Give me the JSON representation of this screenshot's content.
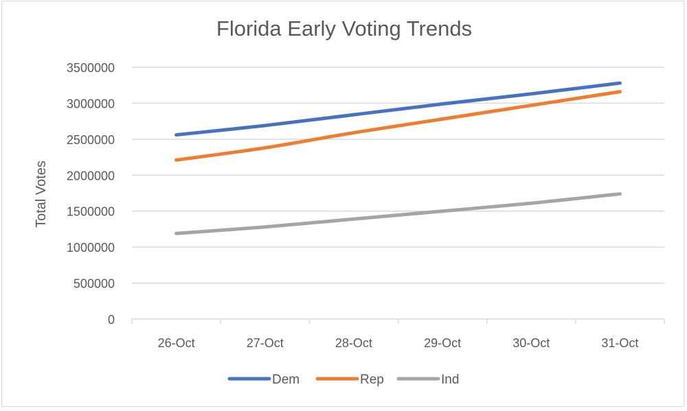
{
  "chart_data": {
    "type": "line",
    "title": "Florida Early Voting Trends",
    "xlabel": "",
    "ylabel": "Total Votes",
    "categories": [
      "26-Oct",
      "27-Oct",
      "28-Oct",
      "29-Oct",
      "30-Oct",
      "31-Oct"
    ],
    "y_ticks": [
      "0",
      "500000",
      "1000000",
      "1500000",
      "2000000",
      "2500000",
      "3000000",
      "3500000"
    ],
    "ylim": [
      0,
      3500000
    ],
    "grid": true,
    "legend_position": "bottom",
    "series": [
      {
        "name": "Dem",
        "color": "#4472C4",
        "values": [
          2560000,
          2690000,
          2840000,
          2990000,
          3130000,
          3280000
        ]
      },
      {
        "name": "Rep",
        "color": "#ED7D31",
        "values": [
          2210000,
          2380000,
          2590000,
          2780000,
          2970000,
          3160000
        ]
      },
      {
        "name": "Ind",
        "color": "#A5A5A5",
        "values": [
          1190000,
          1280000,
          1390000,
          1500000,
          1610000,
          1740000
        ]
      }
    ]
  }
}
